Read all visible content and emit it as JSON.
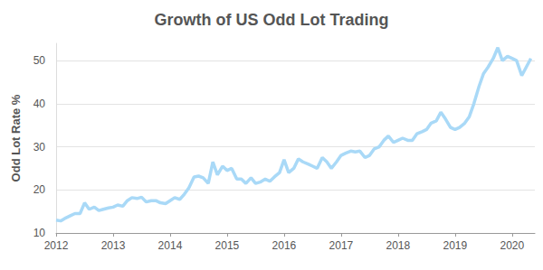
{
  "chart_data": {
    "type": "line",
    "title": "Growth of US Odd Lot Trading",
    "ylabel": "Odd Lot Rate %",
    "color": "#a9d9f7",
    "grid": true,
    "xlim": [
      2012,
      2020.4
    ],
    "xticks": [
      2012,
      2013,
      2014,
      2015,
      2016,
      2017,
      2018,
      2019,
      2020
    ],
    "ylim": [
      10,
      54
    ],
    "yticks": [
      10,
      20,
      30,
      40,
      50
    ],
    "x": [
      2012.0,
      2012.08,
      2012.17,
      2012.25,
      2012.33,
      2012.42,
      2012.5,
      2012.58,
      2012.67,
      2012.75,
      2012.83,
      2012.92,
      2013.0,
      2013.08,
      2013.17,
      2013.25,
      2013.33,
      2013.42,
      2013.5,
      2013.58,
      2013.67,
      2013.75,
      2013.83,
      2013.92,
      2014.0,
      2014.08,
      2014.17,
      2014.25,
      2014.33,
      2014.42,
      2014.5,
      2014.58,
      2014.67,
      2014.75,
      2014.83,
      2014.92,
      2015.0,
      2015.08,
      2015.17,
      2015.25,
      2015.33,
      2015.42,
      2015.5,
      2015.58,
      2015.67,
      2015.75,
      2015.83,
      2015.92,
      2016.0,
      2016.08,
      2016.17,
      2016.25,
      2016.33,
      2016.42,
      2016.5,
      2016.58,
      2016.67,
      2016.75,
      2016.83,
      2016.92,
      2017.0,
      2017.08,
      2017.17,
      2017.25,
      2017.33,
      2017.42,
      2017.5,
      2017.58,
      2017.67,
      2017.75,
      2017.83,
      2017.92,
      2018.0,
      2018.08,
      2018.17,
      2018.25,
      2018.33,
      2018.42,
      2018.5,
      2018.58,
      2018.67,
      2018.75,
      2018.83,
      2018.92,
      2019.0,
      2019.08,
      2019.17,
      2019.25,
      2019.33,
      2019.42,
      2019.5,
      2019.58,
      2019.67,
      2019.75,
      2019.83,
      2019.92,
      2020.0,
      2020.08,
      2020.17,
      2020.25,
      2020.33
    ],
    "values": [
      13,
      12.8,
      13.5,
      14,
      14.5,
      14.5,
      17,
      15.5,
      16,
      15.2,
      15.5,
      15.8,
      16,
      16.5,
      16.2,
      17.5,
      18.2,
      18,
      18.3,
      17.2,
      17.5,
      17.5,
      17,
      16.8,
      17.5,
      18.2,
      17.8,
      19,
      20.5,
      23,
      23.2,
      22.8,
      21.5,
      26.5,
      23.5,
      25.5,
      24.5,
      25,
      22.5,
      22.5,
      21.5,
      22.8,
      21.5,
      21.8,
      22.5,
      22,
      23,
      24,
      27,
      24,
      25,
      27.2,
      26.5,
      26,
      25.5,
      25,
      27.5,
      26.5,
      25,
      26.5,
      28,
      28.5,
      29,
      28.8,
      29,
      27.5,
      28,
      29.5,
      30,
      31.5,
      32.5,
      31,
      31.5,
      32,
      31.5,
      31.5,
      33,
      33.5,
      34,
      35.5,
      36,
      38,
      36.5,
      34.5,
      34,
      34.5,
      35.5,
      37,
      40,
      44,
      47,
      48.5,
      50.5,
      53,
      50,
      51,
      50.5,
      50,
      46.5,
      48.5,
      50.5
    ]
  }
}
